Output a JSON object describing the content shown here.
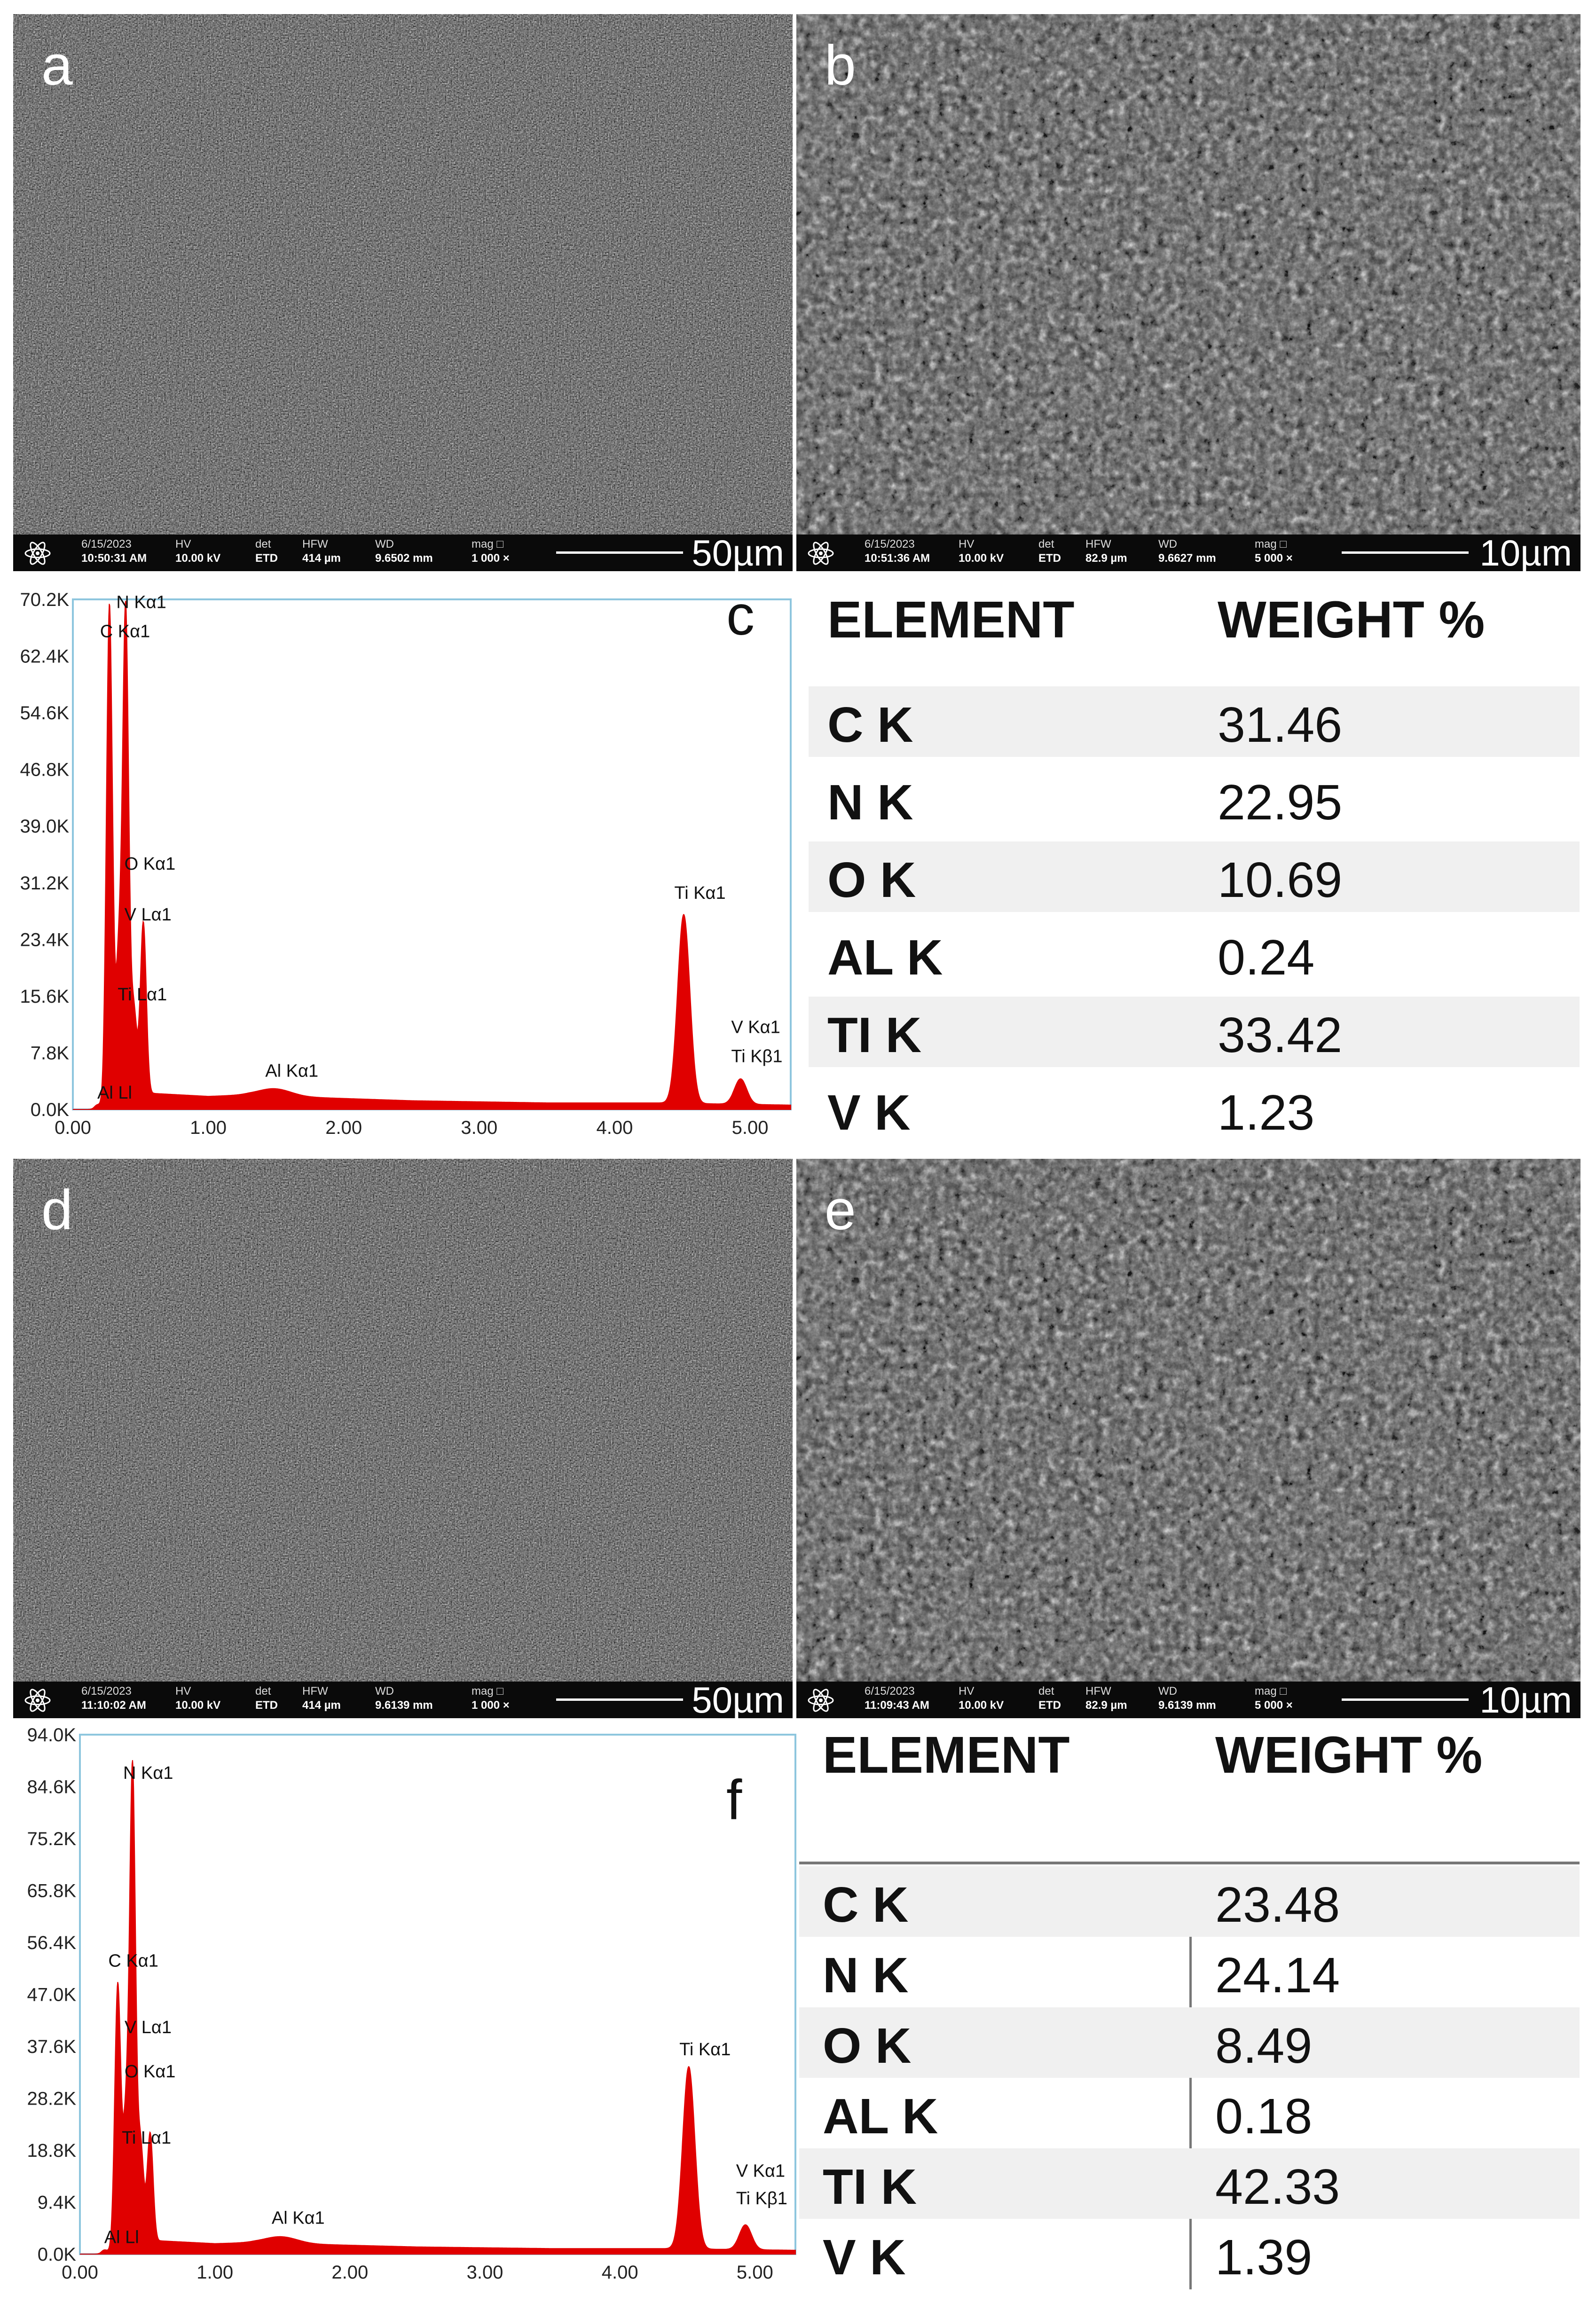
{
  "sem_panels": [
    {
      "id": "a",
      "letter": "a",
      "date": "6/15/2023",
      "time": "10:50:31 AM",
      "hv": "10.00 kV",
      "det": "ETD",
      "hfw": "414 µm",
      "wd": "9.6502 mm",
      "mag": "1 000 ×",
      "scale": "50µm",
      "hdr": {
        "hv": "HV",
        "det": "det",
        "hfw": "HFW",
        "wd": "WD",
        "mag": "mag □"
      }
    },
    {
      "id": "b",
      "letter": "b",
      "date": "6/15/2023",
      "time": "10:51:36 AM",
      "hv": "10.00 kV",
      "det": "ETD",
      "hfw": "82.9 µm",
      "wd": "9.6627 mm",
      "mag": "5 000 ×",
      "scale": "10µm",
      "hdr": {
        "hv": "HV",
        "det": "det",
        "hfw": "HFW",
        "wd": "WD",
        "mag": "mag □"
      }
    },
    {
      "id": "d",
      "letter": "d",
      "date": "6/15/2023",
      "time": "11:10:02 AM",
      "hv": "10.00 kV",
      "det": "ETD",
      "hfw": "414 µm",
      "wd": "9.6139 mm",
      "mag": "1 000 ×",
      "scale": "50µm",
      "hdr": {
        "hv": "HV",
        "det": "det",
        "hfw": "HFW",
        "wd": "WD",
        "mag": "mag □"
      }
    },
    {
      "id": "e",
      "letter": "e",
      "date": "6/15/2023",
      "time": "11:09:43 AM",
      "hv": "10.00 kV",
      "det": "ETD",
      "hfw": "82.9 µm",
      "wd": "9.6139 mm",
      "mag": "5 000 ×",
      "scale": "10µm",
      "hdr": {
        "hv": "HV",
        "det": "det",
        "hfw": "HFW",
        "wd": "WD",
        "mag": "mag □"
      }
    }
  ],
  "chart_data": [
    {
      "type": "line",
      "id": "c",
      "panel_letter": "c",
      "ylim": [
        0,
        70.2
      ],
      "yticks": [
        "0.0K",
        "7.8K",
        "15.6K",
        "23.4K",
        "31.2K",
        "39.0K",
        "46.8K",
        "54.6K",
        "62.4K",
        "70.2K"
      ],
      "xlim": [
        0,
        5.3
      ],
      "xticks": [
        "0.00",
        "1.00",
        "2.00",
        "3.00",
        "4.00",
        "5.00"
      ],
      "peaks_kev": [
        [
          0.18,
          0.5
        ],
        [
          0.27,
          69
        ],
        [
          0.34,
          20
        ],
        [
          0.39,
          67
        ],
        [
          0.45,
          12
        ],
        [
          0.52,
          24
        ],
        [
          1.49,
          1.0
        ],
        [
          4.51,
          26
        ],
        [
          4.93,
          3.5
        ]
      ],
      "background_kev": [
        [
          0.6,
          2.2
        ],
        [
          1.0,
          1.8
        ],
        [
          1.3,
          2.0
        ],
        [
          1.7,
          1.7
        ],
        [
          2.5,
          1.2
        ],
        [
          3.5,
          0.9
        ],
        [
          4.3,
          0.9
        ],
        [
          5.3,
          0.6
        ]
      ],
      "annotations": [
        {
          "text": "N  Kα1",
          "x": 0.39,
          "y": 69
        },
        {
          "text": "C  Kα1",
          "x": 0.27,
          "y": 65
        },
        {
          "text": "O  Kα1",
          "x": 0.45,
          "y": 33
        },
        {
          "text": "V  Lα1",
          "x": 0.45,
          "y": 26
        },
        {
          "text": "Ti Lα1",
          "x": 0.4,
          "y": 15
        },
        {
          "text": "Al Kα1",
          "x": 1.49,
          "y": 4.5
        },
        {
          "text": "Ti Kα1",
          "x": 4.51,
          "y": 29
        },
        {
          "text": "V  Kα1",
          "x": 4.93,
          "y": 10.5
        },
        {
          "text": "Ti Kβ1",
          "x": 4.93,
          "y": 6.5
        },
        {
          "text": "Al Ll",
          "x": 0.25,
          "y": 1.5
        }
      ]
    },
    {
      "type": "line",
      "id": "f",
      "panel_letter": "f",
      "ylim": [
        0,
        94.0
      ],
      "yticks": [
        "0.0K",
        "9.4K",
        "18.8K",
        "28.2K",
        "37.6K",
        "47.0K",
        "56.4K",
        "65.8K",
        "75.2K",
        "84.6K",
        "94.0K"
      ],
      "xlim": [
        0,
        5.3
      ],
      "xticks": [
        "0.00",
        "1.00",
        "2.00",
        "3.00",
        "4.00",
        "5.00"
      ],
      "peaks_kev": [
        [
          0.18,
          0.6
        ],
        [
          0.28,
          48
        ],
        [
          0.34,
          22
        ],
        [
          0.39,
          86
        ],
        [
          0.45,
          18
        ],
        [
          0.52,
          20
        ],
        [
          1.49,
          1.2
        ],
        [
          4.51,
          33
        ],
        [
          4.93,
          4.5
        ]
      ],
      "background_kev": [
        [
          0.6,
          2.4
        ],
        [
          1.0,
          1.9
        ],
        [
          1.3,
          2.1
        ],
        [
          1.7,
          1.8
        ],
        [
          2.5,
          1.3
        ],
        [
          3.5,
          1.0
        ],
        [
          4.3,
          1.0
        ],
        [
          5.3,
          0.7
        ]
      ],
      "annotations": [
        {
          "text": "N  Kα1",
          "x": 0.39,
          "y": 86
        },
        {
          "text": "C  Kα1",
          "x": 0.28,
          "y": 52
        },
        {
          "text": "V  Lα1",
          "x": 0.4,
          "y": 40
        },
        {
          "text": "O  Kα1",
          "x": 0.4,
          "y": 32
        },
        {
          "text": "Ti Lα1",
          "x": 0.38,
          "y": 20
        },
        {
          "text": "Al Kα1",
          "x": 1.49,
          "y": 5.5
        },
        {
          "text": "Ti Kα1",
          "x": 4.51,
          "y": 36
        },
        {
          "text": "V  Kα1",
          "x": 4.93,
          "y": 14
        },
        {
          "text": "Ti Kβ1",
          "x": 4.93,
          "y": 9
        },
        {
          "text": "Al Ll",
          "x": 0.25,
          "y": 2
        }
      ]
    }
  ],
  "tables": [
    {
      "id": "table-c",
      "header": {
        "element": "ELEMENT",
        "weight": "WEIGHT %"
      },
      "rows": [
        {
          "element": "C K",
          "weight": "31.46"
        },
        {
          "element": "N K",
          "weight": "22.95"
        },
        {
          "element": "O K",
          "weight": "10.69"
        },
        {
          "element": "AL K",
          "weight": "0.24"
        },
        {
          "element": "TI K",
          "weight": "33.42"
        },
        {
          "element": "V K",
          "weight": "1.23"
        }
      ]
    },
    {
      "id": "table-f",
      "header": {
        "element": "ELEMENT",
        "weight": "WEIGHT %"
      },
      "rows": [
        {
          "element": "C K",
          "weight": "23.48"
        },
        {
          "element": "N K",
          "weight": "24.14"
        },
        {
          "element": "O K",
          "weight": "8.49"
        },
        {
          "element": "AL K",
          "weight": "0.18"
        },
        {
          "element": "TI K",
          "weight": "42.33"
        },
        {
          "element": "V K",
          "weight": "1.39"
        }
      ]
    }
  ]
}
